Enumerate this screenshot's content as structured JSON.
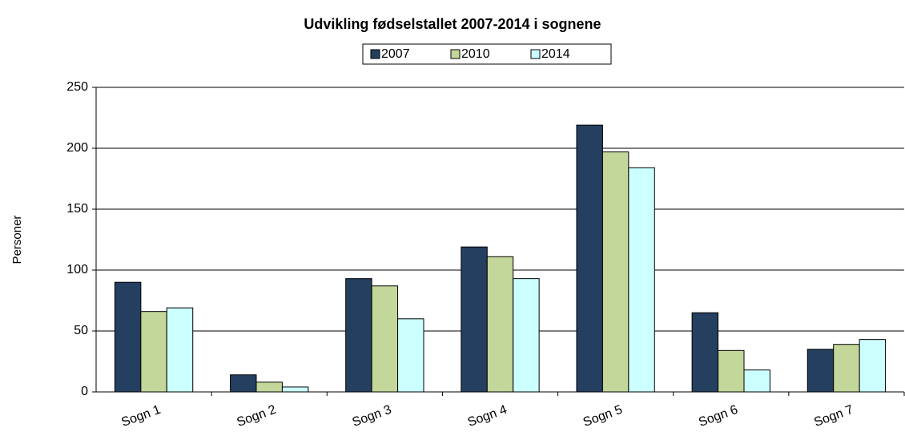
{
  "chart_data": {
    "type": "bar",
    "title": "Udvikling fødselstallet 2007-2014 i sognene",
    "y_label": "Personer",
    "categories": [
      "Sogn 1",
      "Sogn 2",
      "Sogn 3",
      "Sogn 4",
      "Sogn 5",
      "Sogn 6",
      "Sogn 7"
    ],
    "series": [
      {
        "name": "2007",
        "color": "#243f60",
        "values": [
          90,
          14,
          93,
          119,
          219,
          65,
          35
        ]
      },
      {
        "name": "2010",
        "color": "#c4d79b",
        "values": [
          66,
          8,
          87,
          111,
          197,
          34,
          39
        ]
      },
      {
        "name": "2014",
        "color": "#ccffff",
        "values": [
          69,
          4,
          60,
          93,
          184,
          18,
          43
        ]
      }
    ],
    "ylim": [
      0,
      250
    ],
    "yticks": [
      0,
      50,
      100,
      150,
      200,
      250
    ],
    "grid": true,
    "legend": "top"
  }
}
